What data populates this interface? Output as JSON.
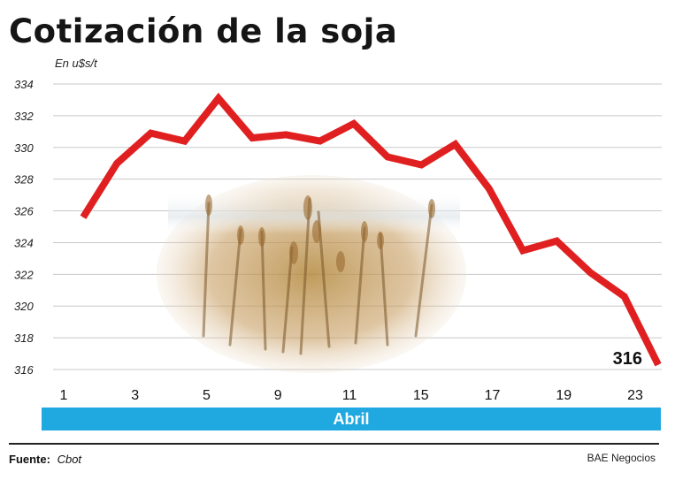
{
  "title": "Cotización de la soja",
  "unit_label": "En u$s/t",
  "month_label": "Abril",
  "source_label": "Fuente:",
  "source_value": "Cbot",
  "credit": "BAE Negocios",
  "colors": {
    "line": "#e02020",
    "month_bar": "#20a8e0",
    "grid": "#c8c8c8"
  },
  "chart_data": {
    "type": "line",
    "title": "Cotización de la soja",
    "ylabel": "En u$s/t",
    "xlabel": "Abril",
    "ylim": [
      316,
      334
    ],
    "y_ticks": [
      334,
      332,
      330,
      328,
      326,
      324,
      322,
      320,
      318,
      316
    ],
    "x_tick_labels": [
      "1",
      "3",
      "5",
      "9",
      "11",
      "15",
      "17",
      "19",
      "23"
    ],
    "grid": true,
    "series": [
      {
        "values": [
          325.6,
          329.0,
          330.9,
          330.4,
          333.1,
          330.6,
          330.8,
          330.4,
          331.5,
          329.4,
          328.9,
          330.2,
          327.4,
          323.5,
          324.1,
          322.1,
          320.6,
          316.3
        ]
      }
    ],
    "last_value_label": "316"
  }
}
